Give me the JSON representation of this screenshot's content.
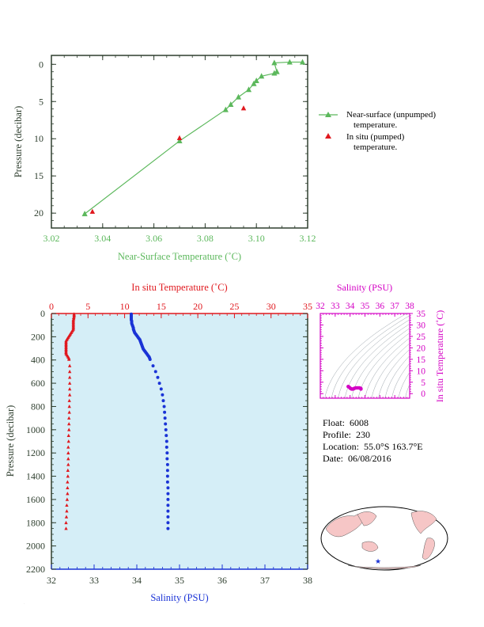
{
  "colors": {
    "green": "#5cb85c",
    "red": "#e0191f",
    "blue": "#1a33d6",
    "magenta": "#d400c4",
    "dark_axis": "#2f3f2f",
    "panel_bg": "#d5eef7"
  },
  "float_info": {
    "float_label": "Float:",
    "float_value": "6008",
    "profile_label": "Profile:",
    "profile_value": "230",
    "location_label": "Location:",
    "location_value": "55.0°S  163.7°E",
    "date_label": "Date:",
    "date_value": "06/08/2016"
  },
  "chart_data": [
    {
      "type": "line",
      "name": "near-surface",
      "xlabel": "Near-Surface Temperature (˚C)",
      "ylabel": "Pressure (decibar)",
      "xlim": [
        3.02,
        3.12
      ],
      "ylim": [
        0,
        22
      ],
      "xticks": [
        "3.02",
        "3.04",
        "3.06",
        "3.08",
        "3.10",
        "3.12"
      ],
      "yticks": [
        "0",
        "5",
        "10",
        "15",
        "20"
      ],
      "y_inverted": true,
      "series": [
        {
          "name": "Near-surface (unpumped) temperature.",
          "marker": "triangle",
          "line": true,
          "points": [
            [
              3.118,
              -0.3
            ],
            [
              3.113,
              -0.3
            ],
            [
              3.107,
              -0.2
            ],
            [
              3.108,
              1.0
            ],
            [
              3.107,
              1.2
            ],
            [
              3.102,
              1.6
            ],
            [
              3.1,
              2.2
            ],
            [
              3.099,
              2.6
            ],
            [
              3.097,
              3.4
            ],
            [
              3.093,
              4.4
            ],
            [
              3.09,
              5.4
            ],
            [
              3.088,
              6.1
            ],
            [
              3.07,
              10.3
            ],
            [
              3.033,
              20.1
            ]
          ]
        },
        {
          "name": "In situ (pumped) temperature.",
          "marker": "triangle",
          "line": false,
          "points": [
            [
              3.095,
              5.9
            ],
            [
              3.07,
              9.9
            ],
            [
              3.036,
              19.8
            ]
          ]
        }
      ],
      "legend_position": "right"
    },
    {
      "type": "scatter",
      "name": "profile",
      "x_top_label": "In situ Temperature (˚C)",
      "x_bottom_label": "Salinity (PSU)",
      "ylabel": "Pressure (decibar)",
      "temp_lim": [
        0,
        35
      ],
      "sal_lim": [
        32,
        38
      ],
      "ylim": [
        0,
        2200
      ],
      "y_inverted": true,
      "temp_ticks": [
        "0",
        "5",
        "10",
        "15",
        "20",
        "25",
        "30",
        "35"
      ],
      "sal_ticks": [
        "32",
        "33",
        "34",
        "35",
        "36",
        "37",
        "38"
      ],
      "pressure_ticks": [
        "0",
        "200",
        "400",
        "600",
        "800",
        "1000",
        "1200",
        "1400",
        "1600",
        "1800",
        "2000",
        "2200"
      ],
      "temperature_series": {
        "pressure": [
          5,
          15,
          25,
          35,
          45,
          55,
          65,
          75,
          85,
          95,
          105,
          115,
          125,
          135,
          145,
          155,
          165,
          175,
          185,
          195,
          205,
          215,
          225,
          235,
          245,
          255,
          265,
          275,
          285,
          295,
          305,
          315,
          325,
          335,
          345,
          355,
          365,
          375,
          385,
          395,
          450,
          500,
          550,
          600,
          650,
          700,
          750,
          800,
          850,
          900,
          950,
          1000,
          1050,
          1100,
          1150,
          1200,
          1250,
          1300,
          1350,
          1400,
          1450,
          1500,
          1550,
          1600,
          1650,
          1700,
          1750,
          1800,
          1850
        ],
        "temperature": [
          3.1,
          3.1,
          3.1,
          3.05,
          3.05,
          3.0,
          3.0,
          3.0,
          3.0,
          3.0,
          3.0,
          3.0,
          3.0,
          3.0,
          2.9,
          2.8,
          2.7,
          2.6,
          2.5,
          2.4,
          2.3,
          2.2,
          2.1,
          2.0,
          2.0,
          2.0,
          2.0,
          2.0,
          2.0,
          2.0,
          2.0,
          2.0,
          2.0,
          2.0,
          2.0,
          2.1,
          2.2,
          2.3,
          2.4,
          2.4,
          2.5,
          2.5,
          2.5,
          2.5,
          2.5,
          2.5,
          2.45,
          2.45,
          2.45,
          2.4,
          2.4,
          2.4,
          2.35,
          2.35,
          2.3,
          2.3,
          2.3,
          2.3,
          2.25,
          2.25,
          2.2,
          2.2,
          2.2,
          2.15,
          2.1,
          2.1,
          2.05,
          2.0,
          2.0
        ]
      },
      "salinity_series": {
        "pressure": [
          5,
          15,
          25,
          35,
          45,
          55,
          65,
          75,
          85,
          95,
          105,
          115,
          125,
          135,
          145,
          155,
          165,
          175,
          185,
          195,
          205,
          215,
          225,
          235,
          245,
          255,
          265,
          275,
          285,
          295,
          305,
          315,
          325,
          335,
          345,
          355,
          365,
          375,
          385,
          395,
          450,
          500,
          550,
          600,
          650,
          700,
          750,
          800,
          850,
          900,
          950,
          1000,
          1050,
          1100,
          1150,
          1200,
          1250,
          1300,
          1350,
          1400,
          1450,
          1500,
          1550,
          1600,
          1650,
          1700,
          1750,
          1800,
          1850
        ],
        "salinity": [
          33.87,
          33.87,
          33.87,
          33.87,
          33.87,
          33.87,
          33.88,
          33.88,
          33.88,
          33.89,
          33.9,
          33.91,
          33.92,
          33.92,
          33.93,
          33.94,
          33.95,
          33.97,
          33.99,
          34.01,
          34.03,
          34.05,
          34.07,
          34.08,
          34.09,
          34.1,
          34.11,
          34.12,
          34.13,
          34.14,
          34.15,
          34.17,
          34.19,
          34.21,
          34.23,
          34.25,
          34.27,
          34.29,
          34.3,
          34.31,
          34.38,
          34.44,
          34.49,
          34.53,
          34.57,
          34.6,
          34.62,
          34.64,
          34.65,
          34.66,
          34.67,
          34.68,
          34.69,
          34.7,
          34.7,
          34.71,
          34.71,
          34.72,
          34.72,
          34.72,
          34.72,
          34.73,
          34.73,
          34.73,
          34.73,
          34.73,
          34.73,
          34.73,
          34.73
        ]
      }
    },
    {
      "type": "scatter",
      "name": "ts-diagram",
      "xlabel": "Salinity (PSU)",
      "ylabel": "In situ Temperature (˚C)",
      "xlim": [
        32,
        38
      ],
      "ylim": [
        0,
        35
      ],
      "xticks": [
        "32",
        "33",
        "34",
        "35",
        "36",
        "37",
        "38"
      ],
      "yticks": [
        "0",
        "5",
        "10",
        "15",
        "20",
        "25",
        "30",
        "35"
      ],
      "points": [
        [
          33.87,
          3.1
        ],
        [
          33.9,
          3.0
        ],
        [
          33.95,
          2.8
        ],
        [
          34.0,
          2.4
        ],
        [
          34.05,
          2.2
        ],
        [
          34.1,
          2.0
        ],
        [
          34.15,
          2.0
        ],
        [
          34.2,
          2.0
        ],
        [
          34.27,
          2.2
        ],
        [
          34.31,
          2.4
        ],
        [
          34.4,
          2.5
        ],
        [
          34.5,
          2.5
        ],
        [
          34.6,
          2.5
        ],
        [
          34.65,
          2.45
        ],
        [
          34.7,
          2.35
        ],
        [
          34.72,
          2.25
        ],
        [
          34.73,
          2.1
        ],
        [
          34.73,
          2.0
        ]
      ]
    }
  ]
}
